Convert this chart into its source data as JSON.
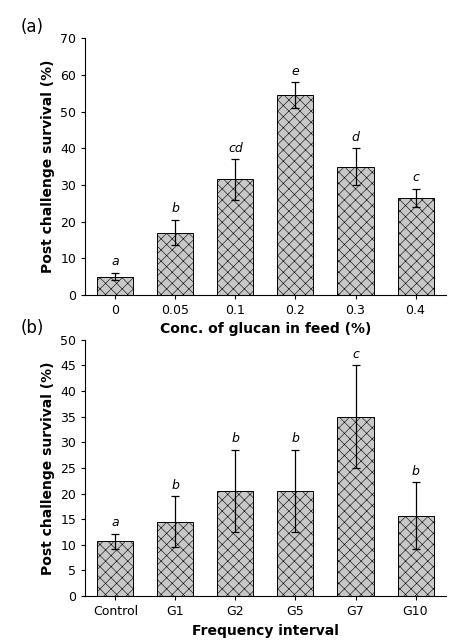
{
  "panel_a": {
    "categories": [
      "0",
      "0.05",
      "0.1",
      "0.2",
      "0.3",
      "0.4"
    ],
    "values": [
      5.0,
      17.0,
      31.5,
      54.5,
      35.0,
      26.5
    ],
    "errors": [
      1.0,
      3.5,
      5.5,
      3.5,
      5.0,
      2.5
    ],
    "letters": [
      "a",
      "b",
      "cd",
      "e",
      "d",
      "c"
    ],
    "xlabel": "Conc. of glucan in feed (%)",
    "ylabel": "Post challenge survival (%)",
    "ylim": [
      0,
      70
    ],
    "yticks": [
      0,
      10,
      20,
      30,
      40,
      50,
      60,
      70
    ],
    "panel_label": "(a)"
  },
  "panel_b": {
    "categories": [
      "Control",
      "G1",
      "G2",
      "G5",
      "G7",
      "G10"
    ],
    "values": [
      10.7,
      14.5,
      20.5,
      20.5,
      35.0,
      15.7
    ],
    "errors": [
      1.5,
      5.0,
      8.0,
      8.0,
      10.0,
      6.5
    ],
    "letters": [
      "a",
      "b",
      "b",
      "b",
      "c",
      "b"
    ],
    "xlabel": "Frequency interval",
    "ylabel": "Post challenge survival (%)",
    "ylim": [
      0,
      50
    ],
    "yticks": [
      0,
      5,
      10,
      15,
      20,
      25,
      30,
      35,
      40,
      45,
      50
    ],
    "panel_label": "(b)"
  },
  "bar_color": "#c8c8c8",
  "hatch": "xxx",
  "bar_edgecolor": "#000000",
  "error_color": "#000000",
  "letter_fontsize": 9,
  "axis_label_fontsize": 10,
  "tick_fontsize": 9,
  "panel_label_fontsize": 12
}
